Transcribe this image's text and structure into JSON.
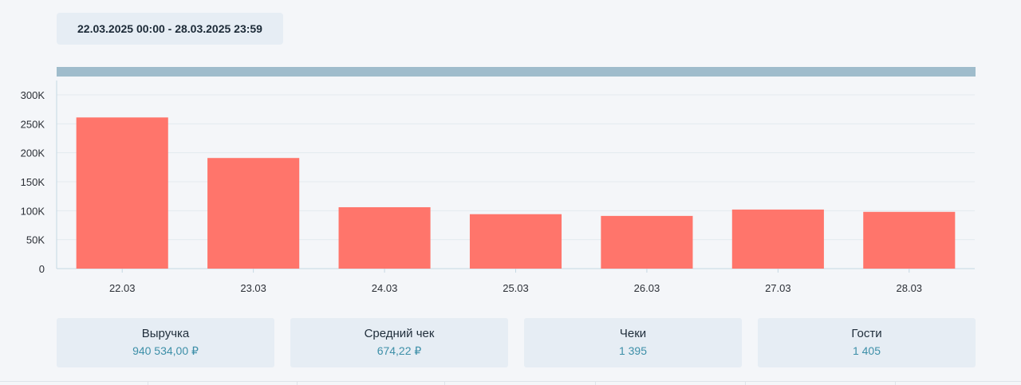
{
  "period": {
    "label": "22.03.2025 00:00 - 28.03.2025 23:59"
  },
  "chart_data": {
    "type": "bar",
    "categories": [
      "22.03",
      "23.03",
      "24.03",
      "25.03",
      "26.03",
      "27.03",
      "28.03"
    ],
    "values": [
      261000,
      191000,
      106000,
      94000,
      91000,
      102000,
      98000
    ],
    "ylim": [
      0,
      300000
    ],
    "y_ticks": [
      "0",
      "50K",
      "100K",
      "150K",
      "200K",
      "250K",
      "300K"
    ],
    "title": "",
    "xlabel": "",
    "ylabel": "",
    "grid": true,
    "bar_color": "#ff756b",
    "grid_color": "#e3ebef",
    "axis_color": "#c5d8e3"
  },
  "stats": [
    {
      "title": "Выручка",
      "value": "940 534,00 ₽"
    },
    {
      "title": "Средний чек",
      "value": "674,22 ₽"
    },
    {
      "title": "Чеки",
      "value": "1 395"
    },
    {
      "title": "Гости",
      "value": "1 405"
    }
  ],
  "colors": {
    "background": "#f4f6f9",
    "card": "#e6edf4",
    "accent_value": "#3d8fa8",
    "strip": "#9fbccc"
  }
}
